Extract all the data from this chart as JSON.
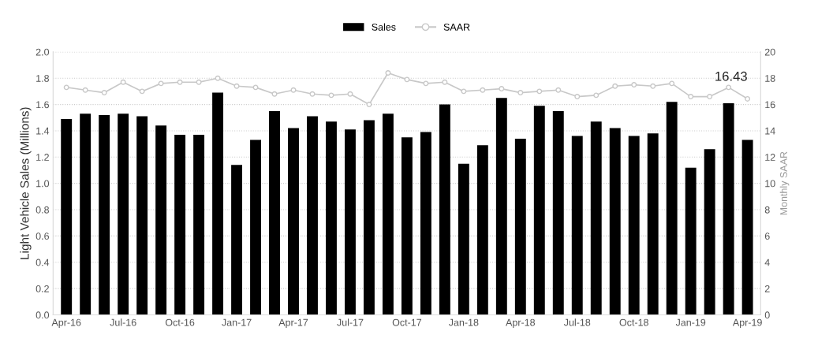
{
  "chart_data": {
    "type": "bar",
    "ylabel": "Light Vehicle Sales (Millions)",
    "y2label": "Monthly SAAR",
    "categories": [
      "Apr-16",
      null,
      null,
      "Jul-16",
      null,
      null,
      "Oct-16",
      null,
      null,
      "Jan-17",
      null,
      null,
      "Apr-17",
      null,
      null,
      "Jul-17",
      null,
      null,
      "Oct-17",
      null,
      null,
      "Jan-18",
      null,
      null,
      "Apr-18",
      null,
      null,
      "Jul-18",
      null,
      null,
      "Oct-18",
      null,
      null,
      "Jan-19",
      null,
      null,
      "Apr-19"
    ],
    "series": [
      {
        "name": "Sales",
        "color": "#000000",
        "values": [
          1.49,
          1.53,
          1.52,
          1.53,
          1.51,
          1.44,
          1.37,
          1.37,
          1.69,
          1.14,
          1.33,
          1.55,
          1.42,
          1.51,
          1.47,
          1.41,
          1.48,
          1.53,
          1.35,
          1.39,
          1.6,
          1.15,
          1.29,
          1.65,
          1.34,
          1.59,
          1.55,
          1.36,
          1.47,
          1.42,
          1.36,
          1.38,
          1.62,
          1.12,
          1.26,
          1.61,
          1.33
        ]
      },
      {
        "name": "SAAR",
        "type": "line",
        "axis": "y2",
        "color": "#c8c8c8",
        "marker": "circle",
        "values": [
          17.3,
          17.1,
          16.9,
          17.7,
          17.0,
          17.6,
          17.7,
          17.7,
          18.0,
          17.4,
          17.3,
          16.8,
          17.1,
          16.8,
          16.7,
          16.8,
          16.0,
          18.4,
          17.9,
          17.6,
          17.7,
          17.0,
          17.1,
          17.2,
          16.9,
          17.0,
          17.1,
          16.6,
          16.7,
          17.4,
          17.5,
          17.4,
          17.6,
          16.6,
          16.6,
          17.3,
          16.43
        ],
        "value_labels": [
          null,
          null,
          null,
          null,
          null,
          null,
          null,
          null,
          null,
          null,
          null,
          null,
          null,
          null,
          null,
          null,
          null,
          null,
          null,
          null,
          null,
          null,
          null,
          null,
          null,
          null,
          null,
          null,
          null,
          null,
          null,
          null,
          null,
          null,
          null,
          null,
          "16.43"
        ]
      }
    ],
    "ylim": [
      0,
      2.0
    ],
    "yticks": [
      {
        "value": 0,
        "label": "0.0"
      },
      {
        "value": 0.2,
        "label": "0.2"
      },
      {
        "value": 0.4,
        "label": "0.4"
      },
      {
        "value": 0.6,
        "label": "0.6"
      },
      {
        "value": 0.8,
        "label": "0.8"
      },
      {
        "value": 1.0,
        "label": "1.0"
      },
      {
        "value": 1.2,
        "label": "1.2"
      },
      {
        "value": 1.4,
        "label": "1.4"
      },
      {
        "value": 1.6,
        "label": "1.6"
      },
      {
        "value": 1.8,
        "label": "1.8"
      },
      {
        "value": 2.0,
        "label": "2.0"
      }
    ],
    "y2lim": [
      0,
      20
    ],
    "y2ticks": [
      0,
      2,
      4,
      6,
      8,
      10,
      12,
      14,
      16,
      18,
      20
    ],
    "grid": "y",
    "legend": "top"
  }
}
